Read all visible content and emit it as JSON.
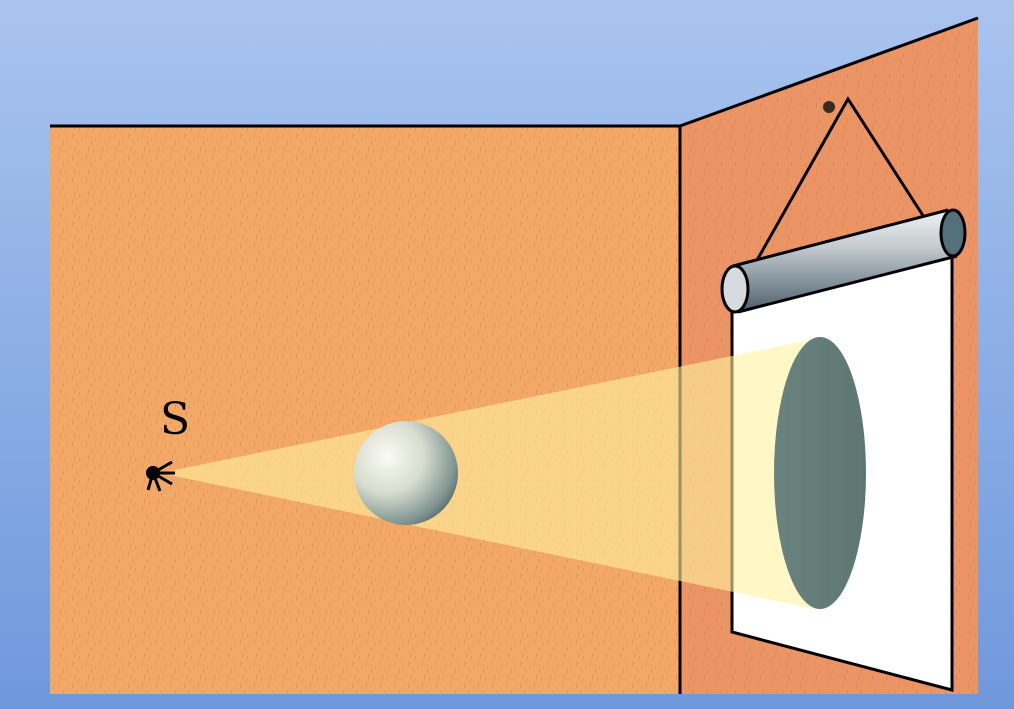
{
  "source": {
    "label": "S",
    "icon": "point-light-source-icon"
  },
  "objects": {
    "occluder": "sphere",
    "screen": "hanging-projection-screen"
  },
  "colors": {
    "background_top": "#a9c4ee",
    "background_bottom": "#6f98dc",
    "left_wall": "#f4a868",
    "right_wall": "#ec9464",
    "light_beam": "#fff1a0",
    "screen": "#ffffff",
    "shadow": "#5d7671",
    "outline": "#000000"
  }
}
